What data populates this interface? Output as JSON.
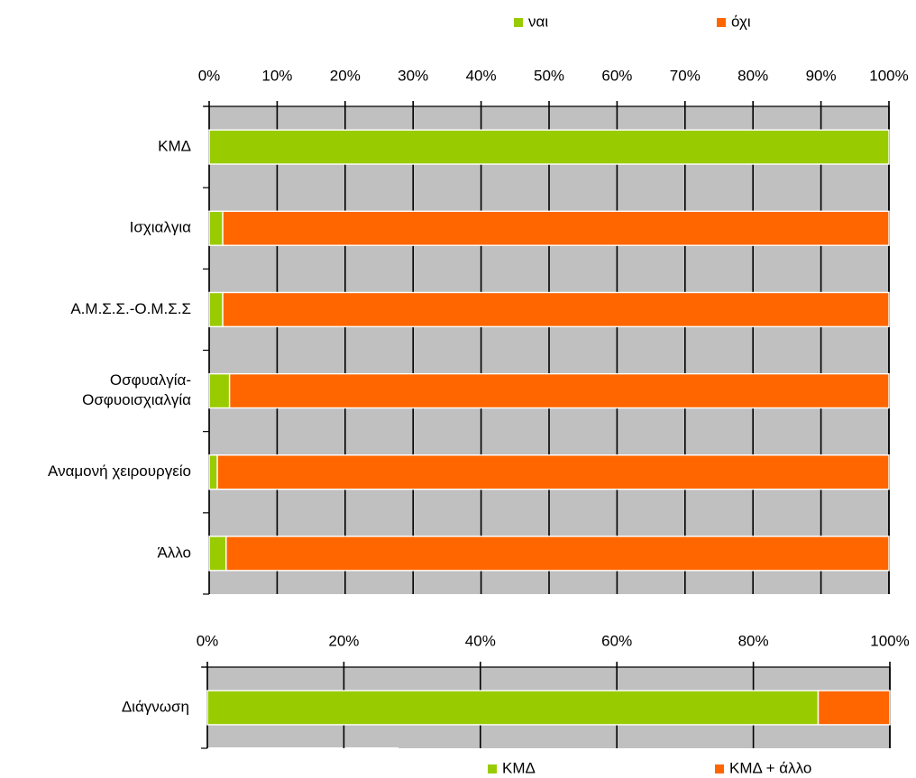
{
  "chart_data": [
    {
      "type": "bar",
      "orientation": "horizontal",
      "stacked": true,
      "percent_stacked": true,
      "categories": [
        "ΚΜΔ",
        "Ισχιαλγια",
        "Α.Μ.Σ.Σ.-Ο.Μ.Σ.Σ",
        "Οσφυαλγία-Οσφυοισχιαλγία",
        "Αναμονή χειρουργείο",
        "Άλλο"
      ],
      "category_label_lines": [
        [
          "ΚΜΔ"
        ],
        [
          "Ισχιαλγια"
        ],
        [
          "Α.Μ.Σ.Σ.-Ο.Μ.Σ.Σ"
        ],
        [
          "Οσφυαλγία-",
          "Οσφυοισχιαλγία"
        ],
        [
          "Αναμονή χειρουργείο"
        ],
        [
          "Άλλο"
        ]
      ],
      "series": [
        {
          "name": "ναι",
          "color": "#99cc00",
          "values": [
            100,
            2,
            2,
            3,
            1.2,
            2.5
          ]
        },
        {
          "name": "όχι",
          "color": "#ff6600",
          "values": [
            0,
            98,
            98,
            97,
            98.8,
            97.5
          ]
        }
      ],
      "xlim": [
        0,
        100
      ],
      "x_ticks": [
        "0%",
        "10%",
        "20%",
        "30%",
        "40%",
        "50%",
        "60%",
        "70%",
        "80%",
        "90%",
        "100%"
      ],
      "x_axis_position": "top",
      "legend_position": "top",
      "plot_background": "#c0c0c0",
      "grid": true
    },
    {
      "type": "bar",
      "orientation": "horizontal",
      "stacked": true,
      "percent_stacked": true,
      "categories": [
        "Διάγνωση"
      ],
      "category_label_lines": [
        [
          "Διάγνωση"
        ]
      ],
      "series": [
        {
          "name": "ΚΜΔ",
          "color": "#99cc00",
          "values": [
            89.5
          ]
        },
        {
          "name": "ΚΜΔ + άλλο",
          "color": "#ff6600",
          "values": [
            10.5
          ]
        }
      ],
      "xlim": [
        0,
        100
      ],
      "x_ticks": [
        "0%",
        "20%",
        "40%",
        "60%",
        "80%",
        "100%"
      ],
      "x_axis_position": "top",
      "legend_position": "bottom-right",
      "plot_background": "#c0c0c0",
      "grid": true
    }
  ]
}
